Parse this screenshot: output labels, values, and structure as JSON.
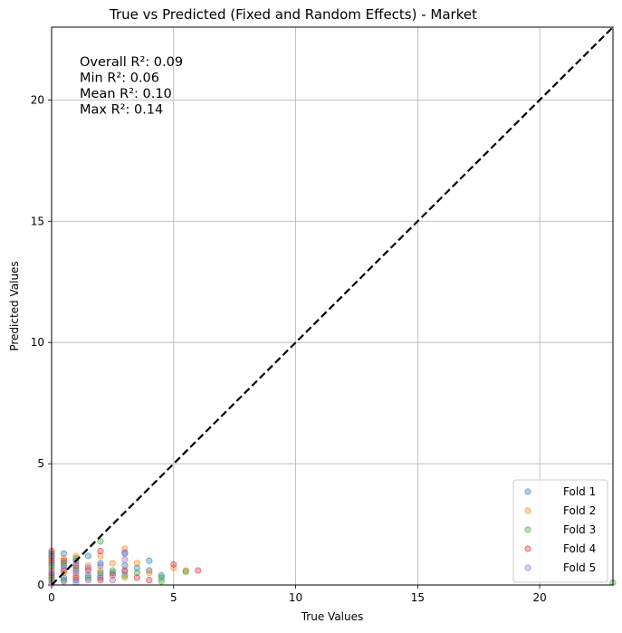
{
  "chart_data": {
    "type": "scatter",
    "title": "True vs Predicted (Fixed and Random Effects) - Market",
    "xlabel": "True Values",
    "ylabel": "Predicted Values",
    "xlim": [
      0,
      23
    ],
    "ylim": [
      0,
      23
    ],
    "x_ticks": [
      0,
      5,
      10,
      15,
      20
    ],
    "y_ticks": [
      0,
      5,
      10,
      15,
      20
    ],
    "grid": true,
    "legend_position": "bottom-right",
    "annotation_lines": [
      "Overall R²: 0.09",
      "Min R²: 0.06",
      "Mean R²: 0.10",
      "Max R²: 0.14"
    ],
    "reference_line": {
      "style": "dashed",
      "color": "#000000",
      "points": [
        [
          0,
          0
        ],
        [
          23,
          23
        ]
      ]
    },
    "series": [
      {
        "name": "Fold 1",
        "color": "#1f77b4",
        "points": [
          [
            0,
            0.2
          ],
          [
            0,
            0.5
          ],
          [
            0,
            0.9
          ],
          [
            0,
            1.3
          ],
          [
            0.5,
            0.3
          ],
          [
            0.5,
            0.8
          ],
          [
            0.5,
            1.3
          ],
          [
            1,
            0.2
          ],
          [
            1,
            0.6
          ],
          [
            1,
            1.0
          ],
          [
            1.5,
            0.4
          ],
          [
            1.5,
            1.2
          ],
          [
            2,
            0.3
          ],
          [
            2,
            0.9
          ],
          [
            2.5,
            0.5
          ],
          [
            3,
            0.8
          ],
          [
            3,
            1.3
          ],
          [
            3.5,
            0.7
          ],
          [
            4,
            1.0
          ],
          [
            4,
            0.6
          ],
          [
            4.5,
            0.4
          ]
        ]
      },
      {
        "name": "Fold 2",
        "color": "#ff7f0e",
        "points": [
          [
            0,
            0.1
          ],
          [
            0,
            0.7
          ],
          [
            0,
            1.1
          ],
          [
            0.5,
            0.5
          ],
          [
            0.5,
            1.1
          ],
          [
            1,
            0.4
          ],
          [
            1,
            1.2
          ],
          [
            1.5,
            0.8
          ],
          [
            2,
            0.6
          ],
          [
            2,
            1.2
          ],
          [
            2.5,
            0.9
          ],
          [
            3,
            1.5
          ],
          [
            3,
            0.3
          ],
          [
            3.5,
            0.9
          ],
          [
            4,
            0.5
          ],
          [
            5,
            0.7
          ],
          [
            5.5,
            0.6
          ]
        ]
      },
      {
        "name": "Fold 3",
        "color": "#2ca02c",
        "points": [
          [
            0,
            0.3
          ],
          [
            0,
            0.8
          ],
          [
            0,
            1.2
          ],
          [
            0.5,
            0.2
          ],
          [
            0.5,
            0.9
          ],
          [
            1,
            0.7
          ],
          [
            1,
            1.1
          ],
          [
            1.5,
            0.3
          ],
          [
            2,
            1.8
          ],
          [
            2,
            0.5
          ],
          [
            2.5,
            0.6
          ],
          [
            3,
            0.4
          ],
          [
            3.5,
            0.5
          ],
          [
            4.5,
            0.3
          ],
          [
            4.5,
            0.15
          ],
          [
            5.5,
            0.55
          ],
          [
            23,
            0.1
          ]
        ]
      },
      {
        "name": "Fold 4",
        "color": "#d62728",
        "points": [
          [
            0,
            0.4
          ],
          [
            0,
            1.0
          ],
          [
            0,
            1.4
          ],
          [
            0.5,
            0.6
          ],
          [
            0.5,
            1.0
          ],
          [
            1,
            0.3
          ],
          [
            1,
            0.8
          ],
          [
            1.5,
            0.6
          ],
          [
            2,
            1.4
          ],
          [
            2,
            0.2
          ],
          [
            2.5,
            0.4
          ],
          [
            3,
            0.6
          ],
          [
            3.5,
            0.3
          ],
          [
            4,
            0.2
          ],
          [
            5,
            0.85
          ],
          [
            6,
            0.6
          ]
        ]
      },
      {
        "name": "Fold 5",
        "color": "#9467bd",
        "points": [
          [
            0,
            0.05
          ],
          [
            0,
            0.6
          ],
          [
            0,
            1.15
          ],
          [
            0.5,
            0.15
          ],
          [
            0.5,
            0.7
          ],
          [
            1,
            0.1
          ],
          [
            1,
            0.5
          ],
          [
            1,
            0.9
          ],
          [
            1.5,
            0.2
          ],
          [
            1.5,
            0.7
          ],
          [
            2,
            0.4
          ],
          [
            2,
            0.8
          ],
          [
            2.5,
            0.2
          ],
          [
            3,
            0.55
          ],
          [
            3,
            1.05
          ],
          [
            3,
            1.35
          ]
        ]
      }
    ]
  }
}
